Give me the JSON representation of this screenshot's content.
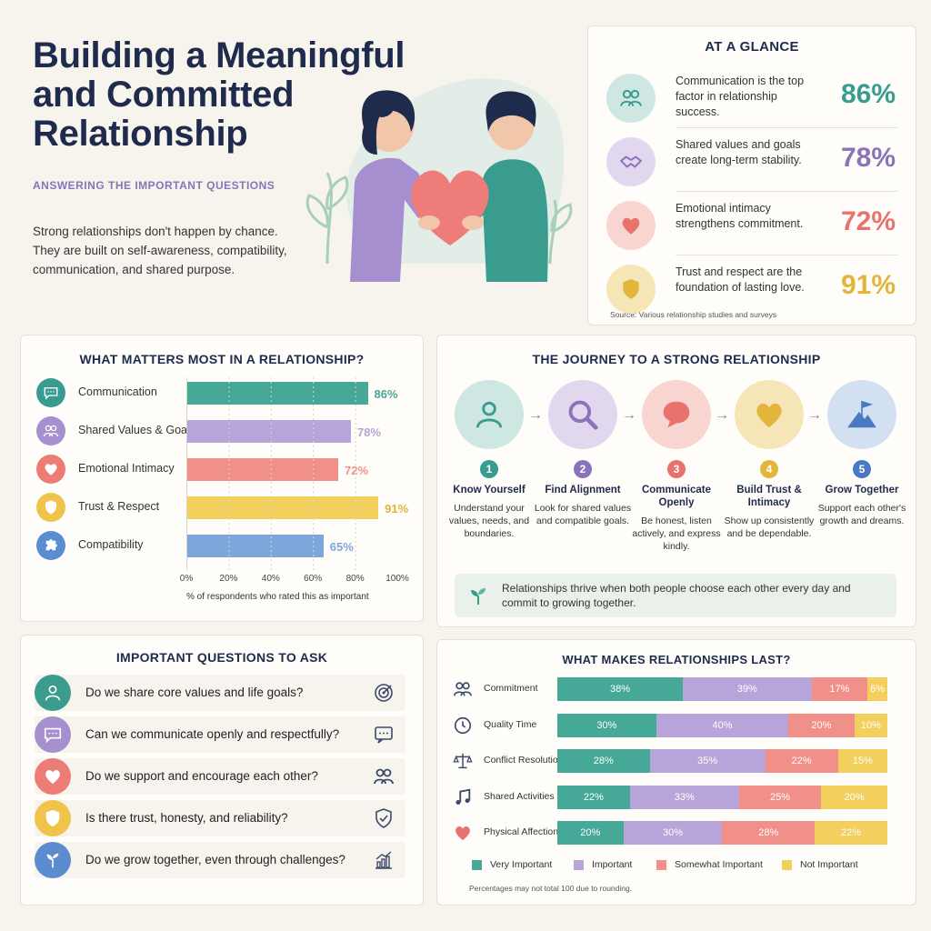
{
  "header": {
    "title": "Building a Meaningful and Committed Relationship",
    "subtitle": "ANSWERING THE IMPORTANT QUESTIONS",
    "intro": "Strong relationships don't happen by chance. They are built on self-awareness, compatibility, communication, and shared purpose."
  },
  "glance": {
    "title": "AT A GLANCE",
    "items": [
      {
        "text": "Communication is the top factor in relationship success.",
        "pct": "86%",
        "icon": "people-icon",
        "color": "#3a9c8e",
        "bg": "#cfe7e2"
      },
      {
        "text": "Shared values and goals create long-term stability.",
        "pct": "78%",
        "icon": "handshake-icon",
        "color": "#8a73b8",
        "bg": "#e1d8ef"
      },
      {
        "text": "Emotional intimacy strengthens commitment.",
        "pct": "72%",
        "icon": "heart-icon",
        "color": "#e8736c",
        "bg": "#f8d5d1"
      },
      {
        "text": "Trust and respect are the foundation of lasting love.",
        "pct": "91%",
        "icon": "shield-icon",
        "color": "#e3b53c",
        "bg": "#f6e6b7"
      }
    ],
    "source": "Source: Various relationship studies and surveys"
  },
  "matters": {
    "title": "WHAT MATTERS MOST IN A RELATIONSHIP?",
    "xlabel": "% of respondents who rated this as important",
    "ticks": [
      "0%",
      "20%",
      "40%",
      "60%",
      "80%",
      "100%"
    ],
    "items": [
      {
        "label": "Communication",
        "value": 86,
        "display": "86%",
        "color": "#46a897",
        "icon": "chat-icon",
        "bg": "#3a9c8e"
      },
      {
        "label": "Shared Values & Goals",
        "value": 78,
        "display": "78%",
        "color": "#b7a4d8",
        "icon": "people-icon",
        "bg": "#a58fcf"
      },
      {
        "label": "Emotional Intimacy",
        "value": 72,
        "display": "72%",
        "color": "#f19088",
        "icon": "heart-icon",
        "bg": "#ec7d74"
      },
      {
        "label": "Trust & Respect",
        "value": 91,
        "display": "91%",
        "color": "#f3cf5e",
        "icon": "shield-icon",
        "bg": "#f0c44c"
      },
      {
        "label": "Compatibility",
        "value": 65,
        "display": "65%",
        "color": "#7da7da",
        "icon": "puzzle-icon",
        "bg": "#5b8ccf"
      }
    ]
  },
  "journey": {
    "title": "THE JOURNEY  TO A STRONG RELATIONSHIP",
    "steps": [
      {
        "num": "1",
        "title": "Know Yourself",
        "desc": "Understand your values, needs, and boundaries.",
        "icon": "person-icon",
        "color": "#3a9c8e",
        "bg": "#cfe7e2"
      },
      {
        "num": "2",
        "title": "Find Alignment",
        "desc": "Look for shared values and compatible goals.",
        "icon": "magnifier-icon",
        "color": "#8a73b8",
        "bg": "#e1d8ef"
      },
      {
        "num": "3",
        "title": "Communicate Openly",
        "desc": "Be honest, listen actively, and express kindly.",
        "icon": "speech-bubble-icon",
        "color": "#e8736c",
        "bg": "#f8d5d1"
      },
      {
        "num": "4",
        "title": "Build Trust & Intimacy",
        "desc": "Show up consistently and be dependable.",
        "icon": "heart-icon",
        "color": "#e3b53c",
        "bg": "#f6e6b7"
      },
      {
        "num": "5",
        "title": "Grow Together",
        "desc": "Support each other's growth and dreams.",
        "icon": "mountain-flag-icon",
        "color": "#4a79c4",
        "bg": "#d3e0f1"
      }
    ],
    "note": "Relationships thrive when both people choose each other every day and commit to growing together."
  },
  "questions": {
    "title": "IMPORTANT QUESTIONS TO ASK",
    "items": [
      {
        "text": "Do we share core values and life goals?",
        "icon": "person-icon",
        "end_icon": "target-icon",
        "bg": "#3a9c8e"
      },
      {
        "text": "Can we communicate openly and respectfully?",
        "icon": "chat-icon",
        "end_icon": "chat-dots-icon",
        "bg": "#a58fcf"
      },
      {
        "text": "Do we support and encourage each other?",
        "icon": "heart-icon",
        "end_icon": "people-icon",
        "bg": "#ec7d74"
      },
      {
        "text": "Is there trust, honesty, and reliability?",
        "icon": "shield-icon",
        "end_icon": "shield-check-icon",
        "bg": "#f0c44c"
      },
      {
        "text": "Do we grow together, even through challenges?",
        "icon": "sprout-icon",
        "end_icon": "growth-chart-icon",
        "bg": "#5b8ccf"
      }
    ]
  },
  "last": {
    "title": "WHAT MAKES RELATIONSHIPS LAST?",
    "legend": [
      "Very Important",
      "Important",
      "Somewhat Important",
      "Not Important"
    ],
    "colors": [
      "#46a897",
      "#b7a4d8",
      "#f19088",
      "#f3cf5e"
    ],
    "rows": [
      {
        "label": "Commitment",
        "icon": "people-icon",
        "values": [
          38,
          39,
          17,
          6
        ],
        "display": [
          "38%",
          "39%",
          "17%",
          "6%"
        ]
      },
      {
        "label": "Quality Time",
        "icon": "clock-icon",
        "values": [
          30,
          40,
          20,
          10
        ],
        "display": [
          "30%",
          "40%",
          "20%",
          "10%"
        ]
      },
      {
        "label": "Conflict Resolution",
        "icon": "scales-icon",
        "values": [
          28,
          35,
          22,
          15
        ],
        "display": [
          "28%",
          "35%",
          "22%",
          "15%"
        ]
      },
      {
        "label": "Shared Activities",
        "icon": "music-note-icon",
        "values": [
          22,
          33,
          25,
          20
        ],
        "display": [
          "22%",
          "33%",
          "25%",
          "20%"
        ]
      },
      {
        "label": "Physical Affection",
        "icon": "heart-icon",
        "values": [
          20,
          30,
          28,
          22
        ],
        "display": [
          "20%",
          "30%",
          "28%",
          "22%"
        ]
      }
    ],
    "footnote": "Percentages may not total 100 due to rounding."
  }
}
